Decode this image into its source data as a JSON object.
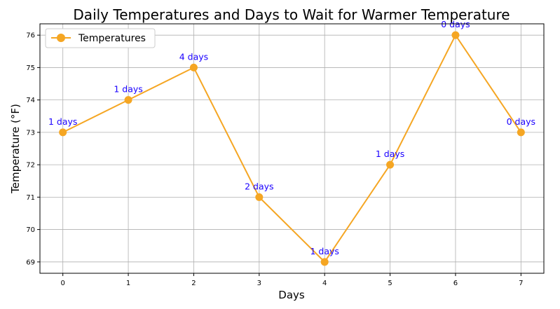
{
  "chart_data": {
    "type": "line",
    "title": "Daily Temperatures and Days to Wait for Warmer Temperature",
    "xlabel": "Days",
    "ylabel": "Temperature (°F)",
    "x": [
      0,
      1,
      2,
      3,
      4,
      5,
      6,
      7
    ],
    "x_ticks": [
      "0",
      "1",
      "2",
      "3",
      "4",
      "5",
      "6",
      "7"
    ],
    "y_ticks": [
      "69",
      "70",
      "71",
      "72",
      "73",
      "74",
      "75",
      "76"
    ],
    "xlim": [
      -0.35,
      7.35
    ],
    "ylim": [
      68.65,
      76.35
    ],
    "grid": true,
    "legend_position": "top-left",
    "series": [
      {
        "name": "Temperatures",
        "values": [
          73,
          74,
          75,
          71,
          69,
          72,
          76,
          73
        ],
        "color": "#f5a623",
        "marker": "circle"
      }
    ],
    "annotations": [
      "1 days",
      "1 days",
      "4 days",
      "2 days",
      "1 days",
      "1 days",
      "0 days",
      "0 days"
    ],
    "annotation_color": "#1a00ff"
  }
}
